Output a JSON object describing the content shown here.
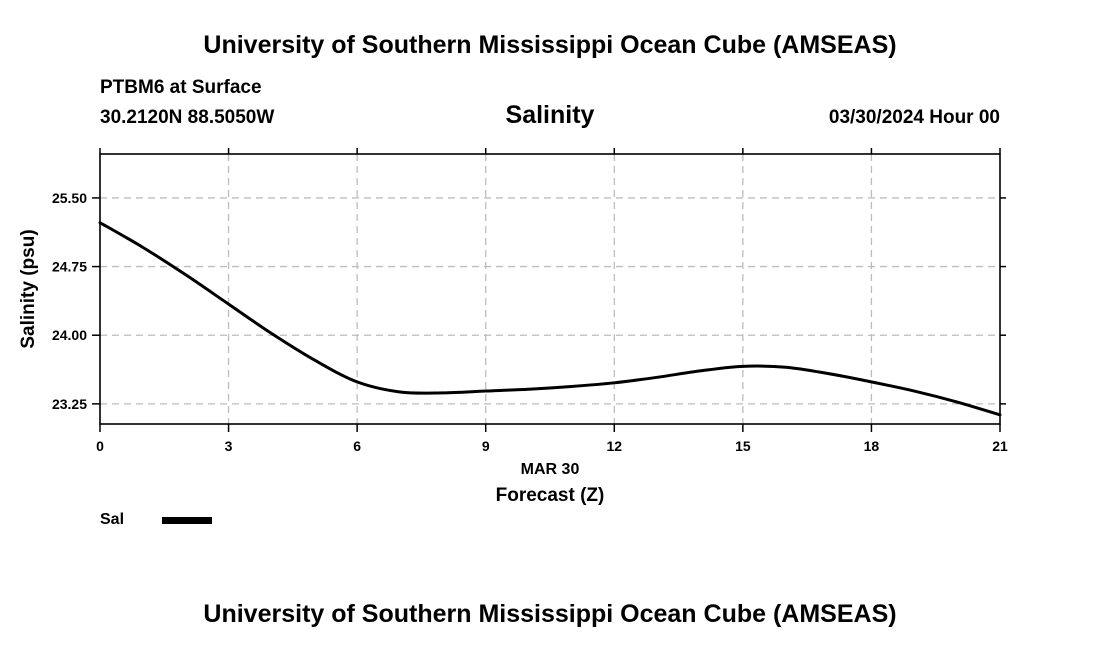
{
  "header": {
    "title": "University of Southern Mississippi Ocean Cube (AMSEAS)",
    "station": "PTBM6 at Surface",
    "coords": "30.2120N  88.5050W",
    "date": "03/30/2024 Hour 00"
  },
  "footer": {
    "title": "University of Southern Mississippi Ocean Cube (AMSEAS)"
  },
  "legend": {
    "label": "Sal",
    "color": "#000000"
  },
  "chart_data": {
    "type": "line",
    "title": "Salinity",
    "xlabel": "Forecast (Z)",
    "xsublabel": "MAR 30",
    "ylabel": "Salinity (psu)",
    "xlim": [
      0,
      21
    ],
    "ylim": [
      23.03,
      25.98
    ],
    "xticks": [
      0,
      3,
      6,
      9,
      12,
      15,
      18,
      21
    ],
    "xtick_labels": [
      "0",
      "3",
      "6",
      "9",
      "12",
      "15",
      "18",
      "21"
    ],
    "yticks": [
      23.25,
      24.0,
      24.75,
      25.5
    ],
    "ytick_labels": [
      "23.25",
      "24.00",
      "24.75",
      "25.50"
    ],
    "grid": true,
    "series": [
      {
        "name": "Sal",
        "x": [
          0,
          1,
          2,
          3,
          4,
          5,
          6,
          7,
          8,
          9,
          10,
          11,
          12,
          13,
          14,
          15,
          16,
          17,
          18,
          19,
          20,
          21
        ],
        "values": [
          25.23,
          24.96,
          24.66,
          24.34,
          24.02,
          23.73,
          23.49,
          23.38,
          23.37,
          23.39,
          23.41,
          23.44,
          23.48,
          23.54,
          23.61,
          23.66,
          23.65,
          23.58,
          23.49,
          23.39,
          23.27,
          23.13
        ]
      }
    ]
  }
}
